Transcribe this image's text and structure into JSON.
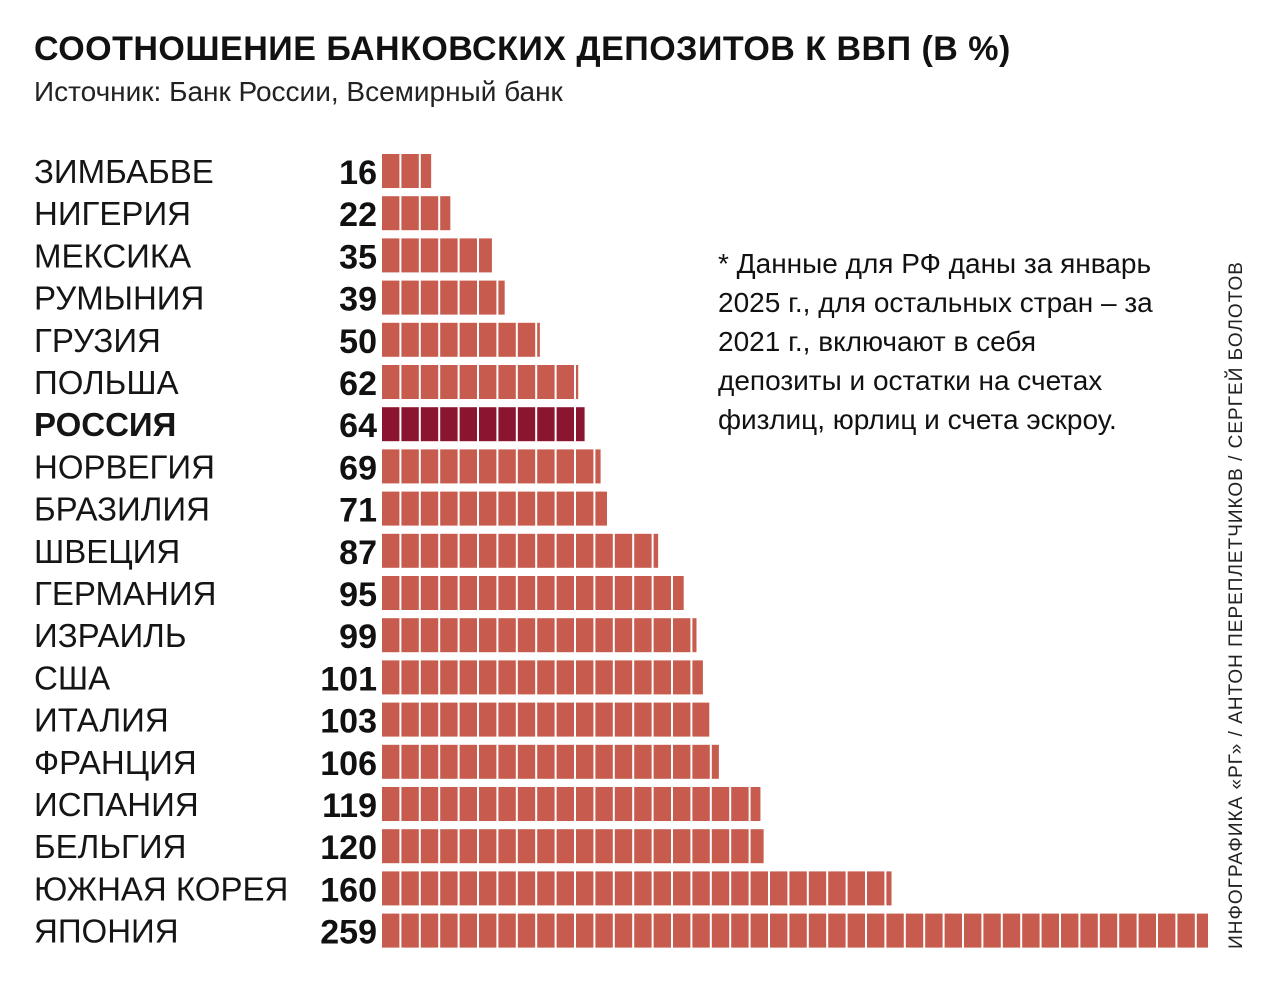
{
  "header": {
    "title": "СООТНОШЕНИЕ БАНКОВСКИХ ДЕПОЗИТОВ К ВВП (В %)",
    "source": "Источник: Банк России, Всемирный банк"
  },
  "note": "* Данные для РФ даны за январь 2025 г., для остальных стран – за 2021 г., включают в себя депозиты и остатки на счетах физлиц, юрлиц и счета эскроу.",
  "credit": "ИНФОГРАФИКА «РГ» / АНТОН ПЕРЕПЛЕТЧИКОВ / СЕРГЕЙ БОЛОТОВ",
  "colors": {
    "bar": "#c65b4e",
    "highlight": "#8b1530"
  },
  "chart_data": {
    "type": "bar",
    "orientation": "horizontal",
    "title": "СООТНОШЕНИЕ БАНКОВСКИХ ДЕПОЗИТОВ К ВВП (В %)",
    "xlabel": "",
    "ylabel": "",
    "categories": [
      "ЗИМБАБВЕ",
      "НИГЕРИЯ",
      "МЕКСИКА",
      "РУМЫНИЯ",
      "ГРУЗИЯ",
      "ПОЛЬША",
      "РОССИЯ",
      "НОРВЕГИЯ",
      "БРАЗИЛИЯ",
      "ШВЕЦИЯ",
      "ГЕРМАНИЯ",
      "ИЗРАИЛЬ",
      "США",
      "ИТАЛИЯ",
      "ФРАНЦИЯ",
      "ИСПАНИЯ",
      "БЕЛЬГИЯ",
      "ЮЖНАЯ КОРЕЯ",
      "ЯПОНИЯ"
    ],
    "values": [
      16,
      22,
      35,
      39,
      50,
      62,
      64,
      69,
      71,
      87,
      95,
      99,
      101,
      103,
      106,
      119,
      120,
      160,
      259
    ],
    "value_labels": [
      "16",
      "22",
      "35",
      "39",
      "50",
      "62",
      "64",
      "69",
      "71",
      "87",
      "95",
      "99",
      "101",
      "103",
      "106",
      "119",
      "120",
      "160",
      "259"
    ],
    "highlight": "РОССИЯ",
    "xlim": [
      0,
      259
    ],
    "grid": false,
    "legend": "none"
  }
}
